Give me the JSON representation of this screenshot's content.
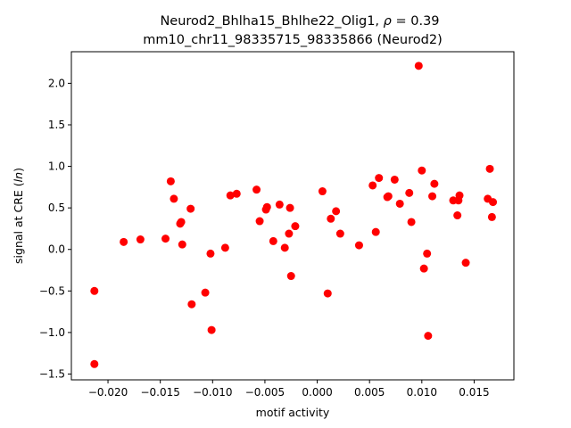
{
  "chart_data": {
    "type": "scatter",
    "title_line1": "Neurod2_Bhlha15_Bhlhe22_Olig1, ",
    "title_rho_symbol": "ρ",
    "title_rho_value": " = 0.39",
    "title_line2": "mm10_chr11_98335715_98335866 (Neurod2)",
    "xlabel": "motif activity",
    "ylabel_prefix": "signal at CRE (",
    "ylabel_italic": "ln",
    "ylabel_suffix": ")",
    "xlim": [
      -0.0235,
      0.0188
    ],
    "ylim": [
      -1.57,
      2.38
    ],
    "xticks": [
      -0.02,
      -0.015,
      -0.01,
      -0.005,
      0.0,
      0.005,
      0.01,
      0.015
    ],
    "xtick_labels": [
      "−0.020",
      "−0.015",
      "−0.010",
      "−0.005",
      "0.000",
      "0.005",
      "0.010",
      "0.015"
    ],
    "yticks": [
      -1.5,
      -1.0,
      -0.5,
      0.0,
      0.5,
      1.0,
      1.5,
      2.0
    ],
    "ytick_labels": [
      "−1.5",
      "−1.0",
      "−0.5",
      "0.0",
      "0.5",
      "1.0",
      "1.5",
      "2.0"
    ],
    "point_color": "#ff0000",
    "points": [
      [
        -0.0213,
        -1.38
      ],
      [
        -0.0213,
        -0.5
      ],
      [
        -0.0185,
        0.09
      ],
      [
        -0.0169,
        0.12
      ],
      [
        -0.0145,
        0.13
      ],
      [
        -0.014,
        0.82
      ],
      [
        -0.0137,
        0.61
      ],
      [
        -0.0131,
        0.31
      ],
      [
        -0.013,
        0.33
      ],
      [
        -0.0129,
        0.06
      ],
      [
        -0.0121,
        0.49
      ],
      [
        -0.012,
        -0.66
      ],
      [
        -0.0107,
        -0.52
      ],
      [
        -0.0102,
        -0.05
      ],
      [
        -0.0101,
        -0.97
      ],
      [
        -0.0088,
        0.02
      ],
      [
        -0.0083,
        0.65
      ],
      [
        -0.0077,
        0.67
      ],
      [
        -0.0058,
        0.72
      ],
      [
        -0.0055,
        0.34
      ],
      [
        -0.0049,
        0.48
      ],
      [
        -0.0048,
        0.51
      ],
      [
        -0.0042,
        0.1
      ],
      [
        -0.0036,
        0.54
      ],
      [
        -0.0031,
        0.02
      ],
      [
        -0.0027,
        0.19
      ],
      [
        -0.0026,
        0.5
      ],
      [
        -0.0025,
        -0.32
      ],
      [
        -0.0021,
        0.28
      ],
      [
        0.0005,
        0.7
      ],
      [
        0.001,
        -0.53
      ],
      [
        0.0013,
        0.37
      ],
      [
        0.0018,
        0.46
      ],
      [
        0.0022,
        0.19
      ],
      [
        0.004,
        0.05
      ],
      [
        0.0053,
        0.77
      ],
      [
        0.0056,
        0.21
      ],
      [
        0.0059,
        0.86
      ],
      [
        0.0067,
        0.63
      ],
      [
        0.0068,
        0.64
      ],
      [
        0.0074,
        0.84
      ],
      [
        0.0079,
        0.55
      ],
      [
        0.0088,
        0.68
      ],
      [
        0.009,
        0.33
      ],
      [
        0.0097,
        2.21
      ],
      [
        0.01,
        0.95
      ],
      [
        0.0102,
        -0.23
      ],
      [
        0.0105,
        -0.05
      ],
      [
        0.0106,
        -1.04
      ],
      [
        0.011,
        0.64
      ],
      [
        0.0112,
        0.79
      ],
      [
        0.013,
        0.59
      ],
      [
        0.0134,
        0.41
      ],
      [
        0.0135,
        0.59
      ],
      [
        0.0136,
        0.65
      ],
      [
        0.0142,
        -0.16
      ],
      [
        0.0163,
        0.61
      ],
      [
        0.0165,
        0.97
      ],
      [
        0.0167,
        0.39
      ],
      [
        0.0168,
        0.57
      ]
    ]
  }
}
